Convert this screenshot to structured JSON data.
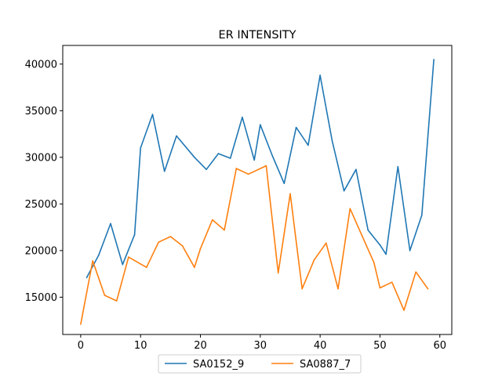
{
  "chart_data": {
    "type": "line",
    "title": "ER INTENSITY",
    "xlabel": "",
    "ylabel": "",
    "xlim": [
      -3,
      62
    ],
    "ylim": [
      11000,
      42000
    ],
    "xticks": [
      0,
      10,
      20,
      30,
      40,
      50,
      60
    ],
    "yticks": [
      15000,
      20000,
      25000,
      30000,
      35000,
      40000
    ],
    "xtick_labels": [
      "0",
      "10",
      "20",
      "30",
      "40",
      "50",
      "60"
    ],
    "ytick_labels": [
      "15000",
      "20000",
      "25000",
      "30000",
      "35000",
      "40000"
    ],
    "grid": false,
    "legend_position": "bottom-center",
    "series": [
      {
        "name": "SA0152_9",
        "color": "#1f77b4",
        "x": [
          1,
          3,
          5,
          7,
          9,
          10,
          12,
          14,
          16,
          19,
          21,
          23,
          25,
          27,
          29,
          30,
          32,
          34,
          36,
          38,
          40,
          42,
          44,
          46,
          48,
          50,
          51,
          53,
          55,
          57,
          59
        ],
        "y": [
          17100,
          19500,
          22900,
          18500,
          21700,
          31000,
          34600,
          28500,
          32300,
          30000,
          28700,
          30400,
          29900,
          34300,
          29700,
          33500,
          30200,
          27200,
          33200,
          31300,
          38800,
          31800,
          26400,
          28700,
          22200,
          20600,
          19600,
          29000,
          20000,
          23800,
          40500
        ]
      },
      {
        "name": "SA0887_7",
        "color": "#ff7f0e",
        "x": [
          0,
          2,
          4,
          6,
          8,
          11,
          13,
          15,
          17,
          19,
          20,
          22,
          24,
          26,
          28,
          31,
          33,
          35,
          37,
          39,
          41,
          43,
          45,
          47,
          49,
          50,
          52,
          54,
          56,
          58
        ],
        "y": [
          12100,
          18900,
          15200,
          14600,
          19300,
          18200,
          20900,
          21500,
          20500,
          18200,
          20200,
          23300,
          22200,
          28800,
          28200,
          29100,
          17600,
          26100,
          15900,
          19000,
          20800,
          15900,
          24500,
          21600,
          18700,
          16000,
          16600,
          13600,
          17700,
          15900
        ]
      }
    ]
  }
}
